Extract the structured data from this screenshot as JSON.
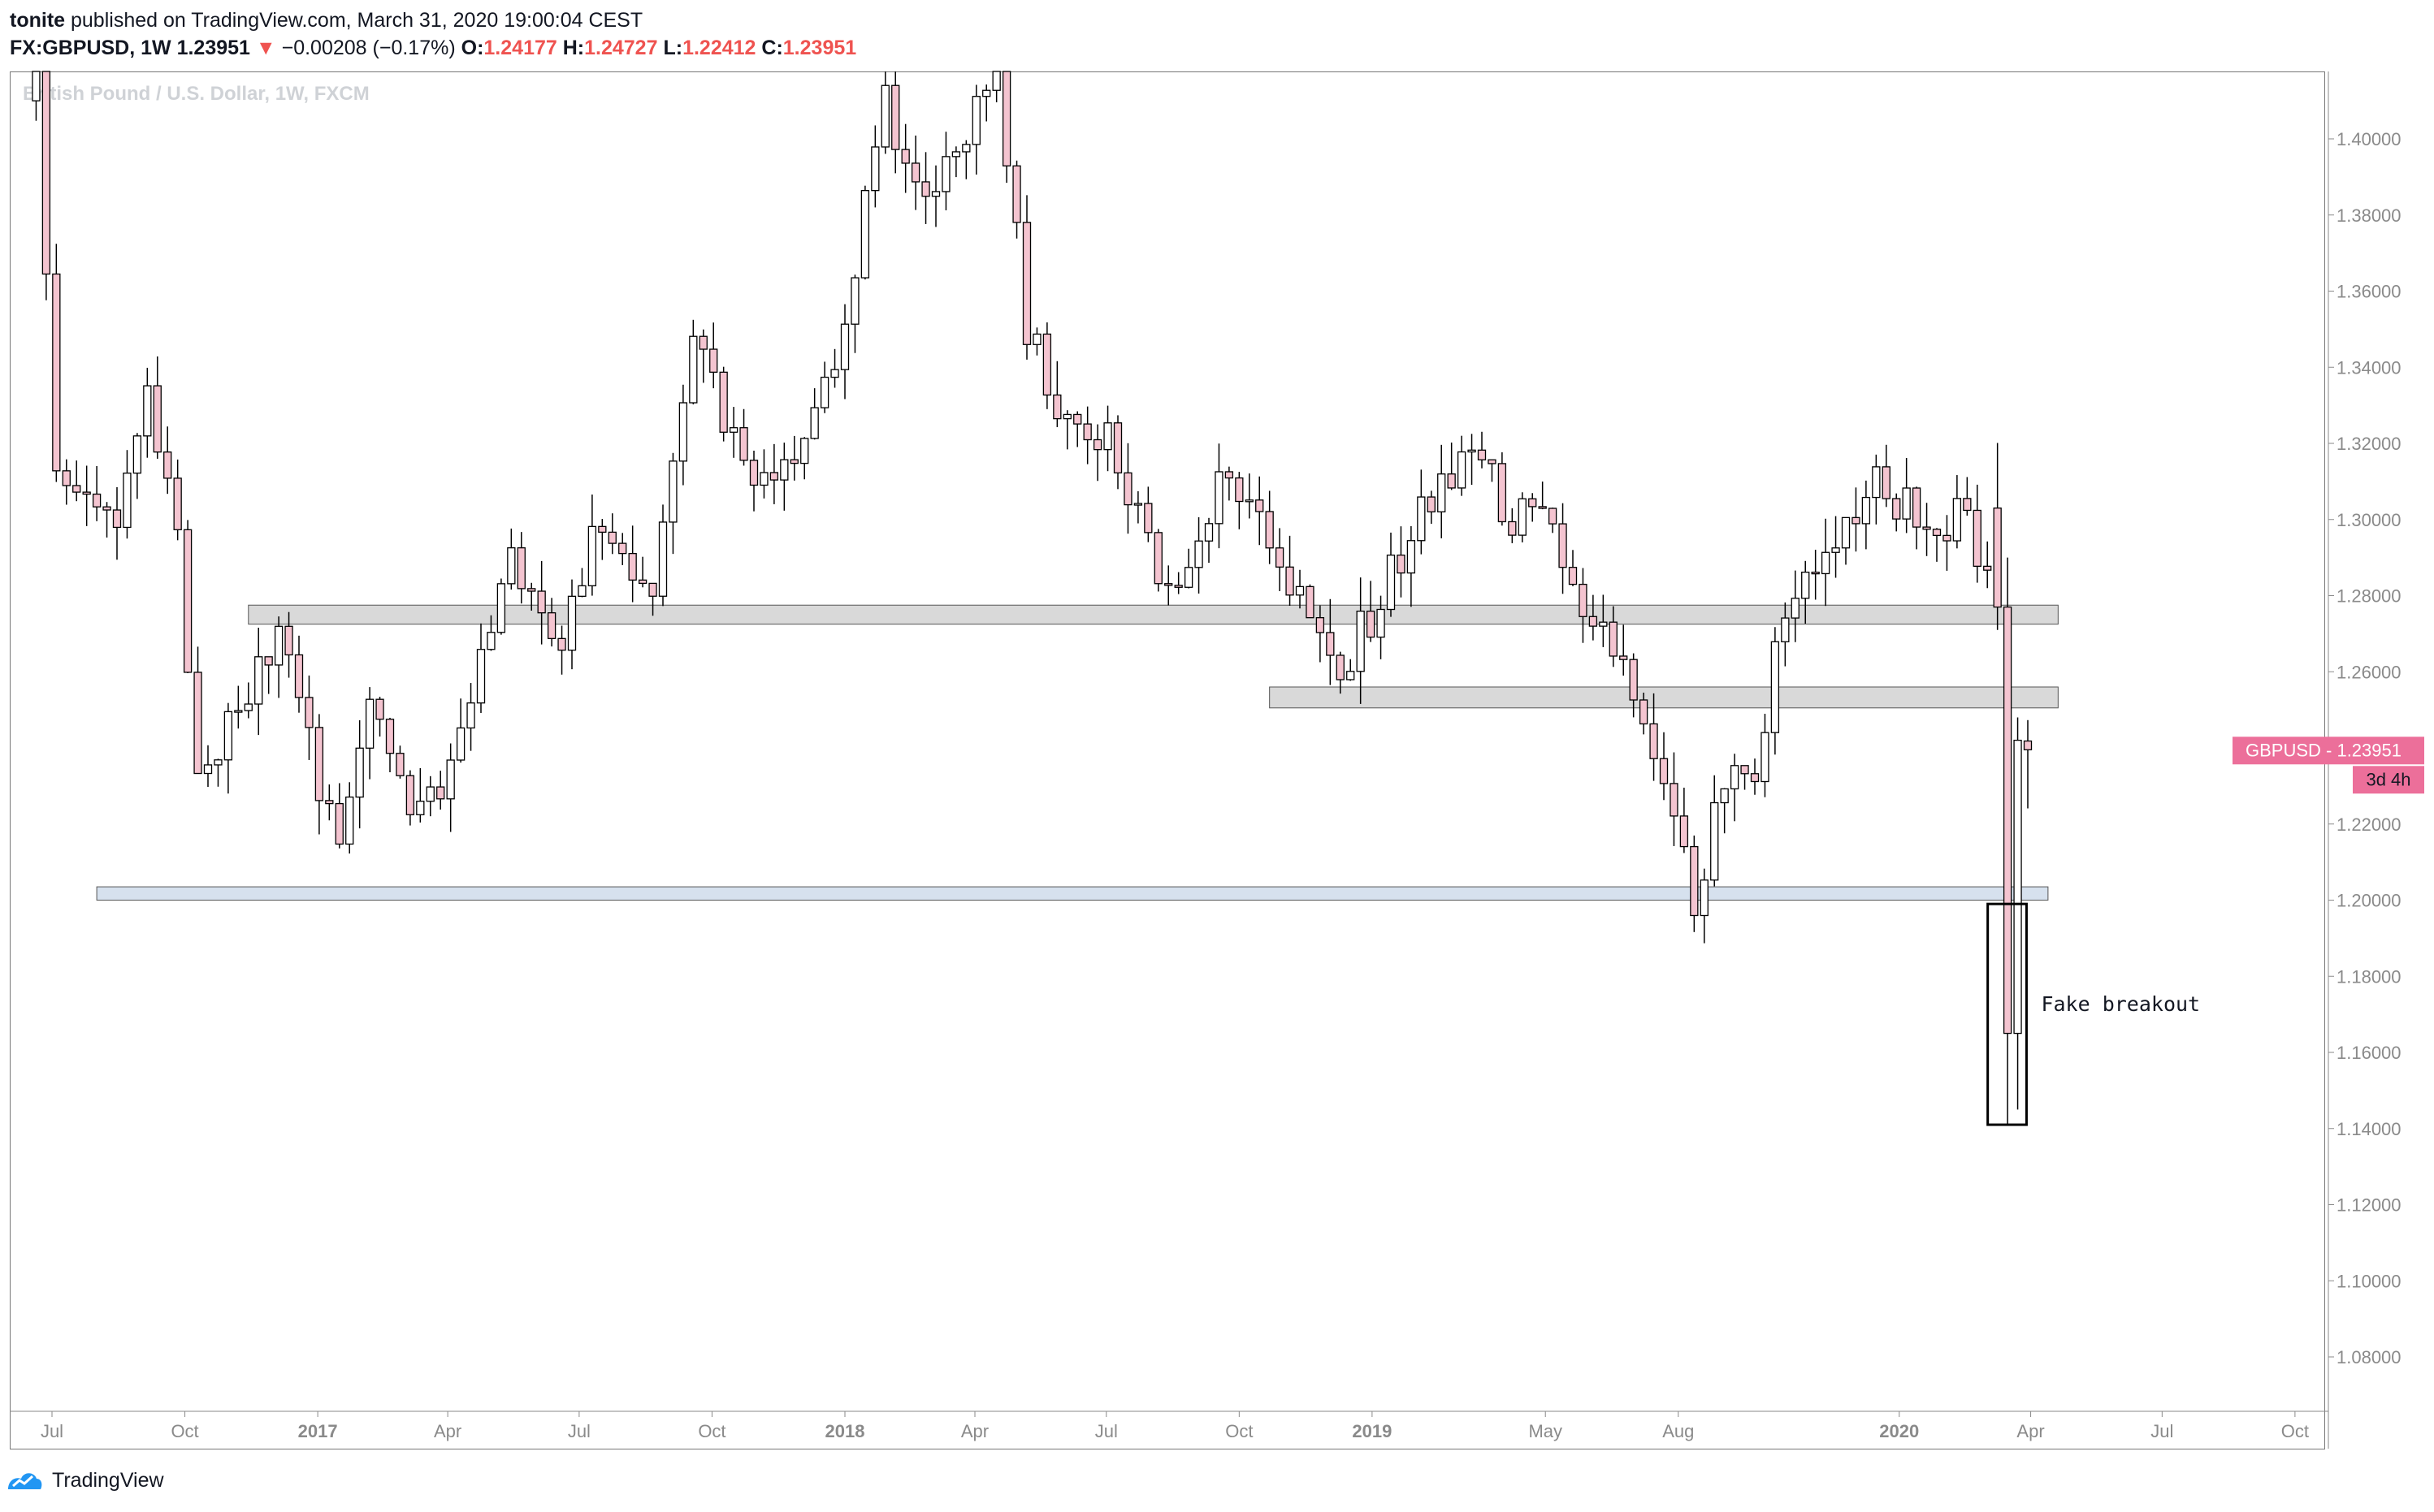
{
  "header": {
    "publisher_line": [
      {
        "text": "tonite",
        "bold": true
      },
      {
        "text": " published on TradingView.com, March 31, 2020 19:00:04 CEST",
        "bold": false
      }
    ],
    "symbol": "FX:GBPUSD, 1W",
    "last": "1.23951",
    "change_arrow": "▼",
    "change": "−0.00208 (−0.17%)",
    "ohlc": [
      {
        "label": "O:",
        "value": "1.24177"
      },
      {
        "label": "H:",
        "value": "1.24727"
      },
      {
        "label": "L:",
        "value": "1.22412"
      },
      {
        "label": "C:",
        "value": "1.23951"
      }
    ]
  },
  "chart_title": "British Pound / U.S. Dollar, 1W, FXCM",
  "footer": {
    "brand": "TradingView",
    "logo_icon": "tradingview-logo-icon"
  },
  "colors": {
    "up_body": "#ffffff",
    "down_body": "#f4c4d0",
    "wick": "#000000",
    "zone_gray": "#d9d9d9",
    "zone_blue": "#d6e1ee",
    "price_label_bg": "#ec6f9a"
  },
  "chart_data": {
    "type": "candlestick",
    "y_range": [
      1.06,
      1.42
    ],
    "x_axis_dates": [
      "2016-07-01",
      "2020-11-01"
    ],
    "y_ticks": [
      "1.40000",
      "1.38000",
      "1.36000",
      "1.34000",
      "1.32000",
      "1.30000",
      "1.28000",
      "1.26000",
      "1.24000",
      "1.22000",
      "1.20000",
      "1.18000",
      "1.16000",
      "1.14000",
      "1.12000",
      "1.10000",
      "1.08000"
    ],
    "x_ticks": [
      {
        "label": "Jul",
        "date": "2016-07-01",
        "bold": false
      },
      {
        "label": "Oct",
        "date": "2016-10-01",
        "bold": false
      },
      {
        "label": "2017",
        "date": "2017-01-01",
        "bold": true
      },
      {
        "label": "Apr",
        "date": "2017-04-01",
        "bold": false
      },
      {
        "label": "Jul",
        "date": "2017-07-01",
        "bold": false
      },
      {
        "label": "Oct",
        "date": "2017-10-01",
        "bold": false
      },
      {
        "label": "2018",
        "date": "2018-01-01",
        "bold": true
      },
      {
        "label": "Apr",
        "date": "2018-04-01",
        "bold": false
      },
      {
        "label": "Jul",
        "date": "2018-07-01",
        "bold": false
      },
      {
        "label": "Oct",
        "date": "2018-10-01",
        "bold": false
      },
      {
        "label": "2019",
        "date": "2019-01-01",
        "bold": true
      },
      {
        "label": "May",
        "date": "2019-05-01",
        "bold": false
      },
      {
        "label": "Aug",
        "date": "2019-08-01",
        "bold": false
      },
      {
        "label": "2020",
        "date": "2020-01-01",
        "bold": true
      },
      {
        "label": "Apr",
        "date": "2020-04-01",
        "bold": false
      },
      {
        "label": "Jul",
        "date": "2020-07-01",
        "bold": false
      },
      {
        "label": "Oct",
        "date": "2020-10-01",
        "bold": false
      }
    ],
    "anchors": [
      [
        "2016-06-20",
        1.42
      ],
      [
        "2016-07-04",
        1.31
      ],
      [
        "2016-07-25",
        1.31
      ],
      [
        "2016-08-15",
        1.3
      ],
      [
        "2016-09-05",
        1.33
      ],
      [
        "2016-09-26",
        1.3
      ],
      [
        "2016-10-10",
        1.23
      ],
      [
        "2016-11-07",
        1.25
      ],
      [
        "2016-12-05",
        1.27
      ],
      [
        "2017-01-16",
        1.21
      ],
      [
        "2017-02-06",
        1.25
      ],
      [
        "2017-03-13",
        1.22
      ],
      [
        "2017-04-17",
        1.25
      ],
      [
        "2017-05-15",
        1.29
      ],
      [
        "2017-06-19",
        1.27
      ],
      [
        "2017-07-17",
        1.3
      ],
      [
        "2017-08-21",
        1.28
      ],
      [
        "2017-09-18",
        1.35
      ],
      [
        "2017-10-16",
        1.32
      ],
      [
        "2017-11-13",
        1.31
      ],
      [
        "2017-12-25",
        1.34
      ],
      [
        "2018-01-29",
        1.41
      ],
      [
        "2018-02-26",
        1.38
      ],
      [
        "2018-04-16",
        1.42
      ],
      [
        "2018-05-07",
        1.35
      ],
      [
        "2018-05-28",
        1.33
      ],
      [
        "2018-07-02",
        1.32
      ],
      [
        "2018-08-13",
        1.28
      ],
      [
        "2018-09-17",
        1.31
      ],
      [
        "2018-10-15",
        1.3
      ],
      [
        "2018-11-12",
        1.28
      ],
      [
        "2018-12-10",
        1.26
      ],
      [
        "2019-01-07",
        1.28
      ],
      [
        "2019-02-04",
        1.3
      ],
      [
        "2019-03-11",
        1.32
      ],
      [
        "2019-04-08",
        1.3
      ],
      [
        "2019-05-06",
        1.3
      ],
      [
        "2019-05-27",
        1.27
      ],
      [
        "2019-06-17",
        1.27
      ],
      [
        "2019-07-08",
        1.25
      ],
      [
        "2019-08-12",
        1.2
      ],
      [
        "2019-09-02",
        1.23
      ],
      [
        "2019-09-23",
        1.23
      ],
      [
        "2019-10-14",
        1.28
      ],
      [
        "2019-11-04",
        1.29
      ],
      [
        "2019-12-16",
        1.31
      ],
      [
        "2020-01-13",
        1.3
      ],
      [
        "2020-02-17",
        1.3
      ],
      [
        "2020-03-09",
        1.28
      ]
    ],
    "final_candles": [
      {
        "date": "2020-03-09",
        "open": 1.303,
        "high": 1.3201,
        "low": 1.271,
        "close": 1.277
      },
      {
        "date": "2020-03-16",
        "open": 1.277,
        "high": 1.29,
        "low": 1.141,
        "close": 1.165
      },
      {
        "date": "2020-03-23",
        "open": 1.165,
        "high": 1.248,
        "low": 1.145,
        "close": 1.242
      },
      {
        "date": "2020-03-30",
        "open": 1.2418,
        "high": 1.2473,
        "low": 1.2241,
        "close": 1.2395
      }
    ],
    "zones": [
      {
        "name": "resistance-zone-1275",
        "from": "2016-11-14",
        "to": "2020-04-20",
        "low": 1.2725,
        "high": 1.2775,
        "color": "gray"
      },
      {
        "name": "resistance-zone-1253",
        "from": "2018-10-22",
        "to": "2020-04-20",
        "low": 1.2505,
        "high": 1.256,
        "color": "gray"
      },
      {
        "name": "support-zone-1200",
        "from": "2016-08-01",
        "to": "2020-04-13",
        "low": 1.2,
        "high": 1.2035,
        "color": "blue"
      }
    ],
    "annotation": {
      "text": "Fake breakout",
      "from": "2020-03-09",
      "to": "2020-04-06",
      "low": 1.141,
      "high": 1.199
    },
    "price_label": {
      "text": "GBPUSD  -  1.23951",
      "value": 1.23951
    },
    "countdown_label": {
      "text": "3d 4h"
    },
    "grid": false
  }
}
